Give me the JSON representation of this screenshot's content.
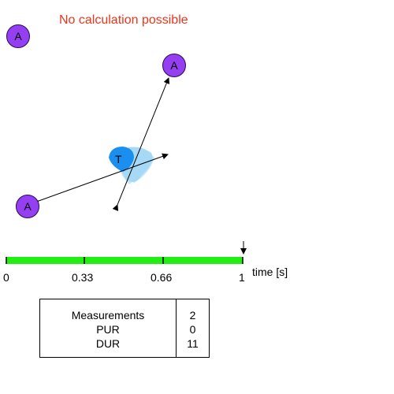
{
  "status": {
    "message": "No calculation possible"
  },
  "anchors": [
    {
      "label": "A"
    },
    {
      "label": "A"
    },
    {
      "label": "A"
    }
  ],
  "tag": {
    "label": "T"
  },
  "timeline": {
    "ticks": [
      "0",
      "0.33",
      "0.66",
      "1"
    ],
    "axis_label": "time [s]",
    "progress": 1.0,
    "bar_color": "#22ee11"
  },
  "measurements": {
    "rows": [
      {
        "label": "Measurements",
        "value": "2"
      },
      {
        "label": "PUR",
        "value": "0"
      },
      {
        "label": "DUR",
        "value": "11"
      }
    ]
  },
  "colors": {
    "anchor_fill": "#9440f2",
    "tag_fill": "#1a8ff0",
    "tag_trail": "#8fd0f5",
    "status_text": "#e8361c"
  }
}
